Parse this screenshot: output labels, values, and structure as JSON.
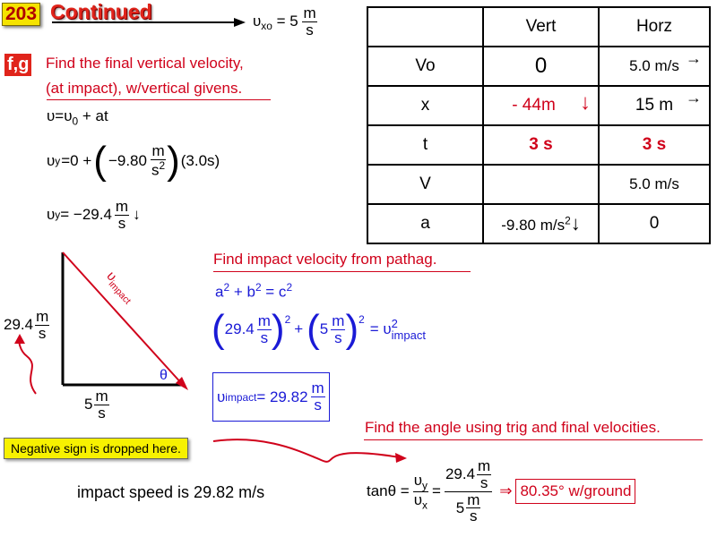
{
  "header": {
    "slide_number": "203",
    "title": "Continued",
    "vxo_label": "υ",
    "vxo_sub": "xo",
    "vxo_eq": " = 5",
    "vxo_num": "m",
    "vxo_den": "s"
  },
  "part": {
    "badge": "f,g",
    "line1": "Find the final vertical velocity,",
    "line2": "(at impact), w/vertical givens."
  },
  "eq1": {
    "text": "υ=υ",
    "sub": "0",
    "rest": " + at"
  },
  "eq2": {
    "lhs": "υ",
    "sub": "y",
    "eq": "=0 +",
    "val": "−9.80",
    "num": "m",
    "den": "s",
    "den_sup": "2",
    "t": "(3.0s)"
  },
  "eq3": {
    "lhs": "υ",
    "sub": "y",
    "eq": " = −29.4",
    "num": "m",
    "den": "s",
    "arrow": "↓"
  },
  "table": {
    "headers": [
      "",
      "Vert",
      "Horz"
    ],
    "rows": [
      {
        "label": "Vo",
        "vert": "0",
        "horz": "5.0 m/s"
      },
      {
        "label": "x",
        "vert": "- 44m",
        "horz": "15 m"
      },
      {
        "label": "t",
        "vert": "3 s",
        "horz": "3 s"
      },
      {
        "label": "V",
        "vert": "",
        "horz": "5.0 m/s"
      },
      {
        "label": "a",
        "vert": "-9.80 m/s",
        "vert_sup": "2",
        "horz": "0"
      }
    ]
  },
  "triangle": {
    "hyp_label": "υ",
    "hyp_sub": "impact",
    "theta": "θ",
    "vertical_value": "29.4",
    "vertical_num": "m",
    "vertical_den": "s",
    "horizontal_value": "5",
    "horizontal_num": "m",
    "horizontal_den": "s"
  },
  "pythag": {
    "heading": "Find impact velocity from pathag.",
    "eq_a": "a",
    "sup2": "2",
    "eq_plus": " + b",
    "eq_eq": " = c",
    "term1": "29.4",
    "term2": "5",
    "num": "m",
    "den": "s",
    "plus": "+",
    "rhs": "= υ",
    "rhs_sub": "impact",
    "result_lhs": "υ",
    "result_sub": "impact",
    "result_eq": " = 29.82",
    "result_num": "m",
    "result_den": "s"
  },
  "angle": {
    "heading": "Find the angle using trig and final velocities.",
    "tan": "tanθ =",
    "vy": "υ",
    "vy_sub": "y",
    "vx": "υ",
    "vx_sub": "x",
    "eq": "=",
    "num_val": "29.4",
    "num_num": "m",
    "num_den": "s",
    "den_val": "5",
    "den_num": "m",
    "den_den": "s",
    "implies": "⇒",
    "result": "80.35° w/ground"
  },
  "callout": "Negative sign is dropped here.",
  "impact_speed": "impact speed is 29.82 m/s",
  "colors": {
    "red": "#d0021b",
    "blue": "#1a1ad6",
    "yellow": "#f7f100"
  }
}
